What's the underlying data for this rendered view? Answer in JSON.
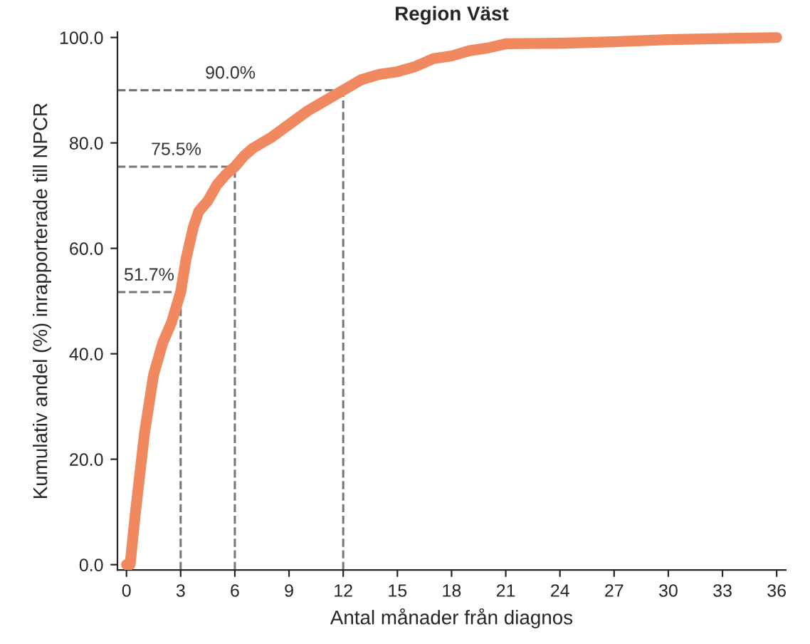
{
  "chart_data": {
    "type": "line",
    "title": "Region Väst",
    "xlabel": "Antal månader från diagnos",
    "ylabel": "Kumulativ andel (%) inrapporterade till NPCR",
    "x": [
      0,
      0.2,
      0.5,
      1,
      1.5,
      2,
      2.5,
      3,
      3.3,
      3.7,
      4,
      4.5,
      5,
      5.5,
      6,
      6.5,
      7,
      8,
      9,
      10,
      11,
      12,
      13,
      14,
      15,
      16,
      17,
      18,
      19,
      20,
      21,
      24,
      27,
      30,
      33,
      36
    ],
    "series": [
      {
        "color": "#f0895f",
        "values": [
          0,
          0,
          10,
          25,
          36,
          42,
          46,
          51.7,
          58,
          64,
          67,
          69,
          72,
          74,
          75.5,
          77.5,
          79,
          81,
          83.5,
          86,
          88,
          90,
          92,
          93,
          93.5,
          94.5,
          96,
          96.5,
          97.5,
          98,
          98.8,
          98.9,
          99.2,
          99.6,
          99.8,
          100
        ]
      }
    ],
    "xlim": [
      -0.5,
      36.5
    ],
    "ylim": [
      -1,
      101
    ],
    "xticks": [
      0,
      3,
      6,
      9,
      12,
      15,
      18,
      21,
      24,
      27,
      30,
      33,
      36
    ],
    "yticks": [
      {
        "value": 0,
        "label": "0.0"
      },
      {
        "value": 20,
        "label": "20.0"
      },
      {
        "value": 40,
        "label": "40.0"
      },
      {
        "value": 60,
        "label": "60.0"
      },
      {
        "value": 80,
        "label": "80.0"
      },
      {
        "value": 100,
        "label": "100.0"
      }
    ],
    "ref_lines": [
      {
        "axis": "y",
        "value": 51.7,
        "label": "51.7%",
        "color": "#777777",
        "line_style": "dashed"
      },
      {
        "axis": "y",
        "value": 75.5,
        "label": "75.5%",
        "color": "#777777",
        "line_style": "dashed"
      },
      {
        "axis": "y",
        "value": 90.0,
        "label": "90.0%",
        "color": "#777777",
        "line_style": "dashed"
      },
      {
        "axis": "x",
        "value": 3,
        "color": "#777777",
        "line_style": "dashed"
      },
      {
        "axis": "x",
        "value": 6,
        "color": "#777777",
        "line_style": "dashed"
      },
      {
        "axis": "x",
        "value": 12,
        "color": "#777777",
        "line_style": "dashed"
      }
    ],
    "grid": false,
    "legend": false,
    "line_style": "solid",
    "marker": "none"
  }
}
